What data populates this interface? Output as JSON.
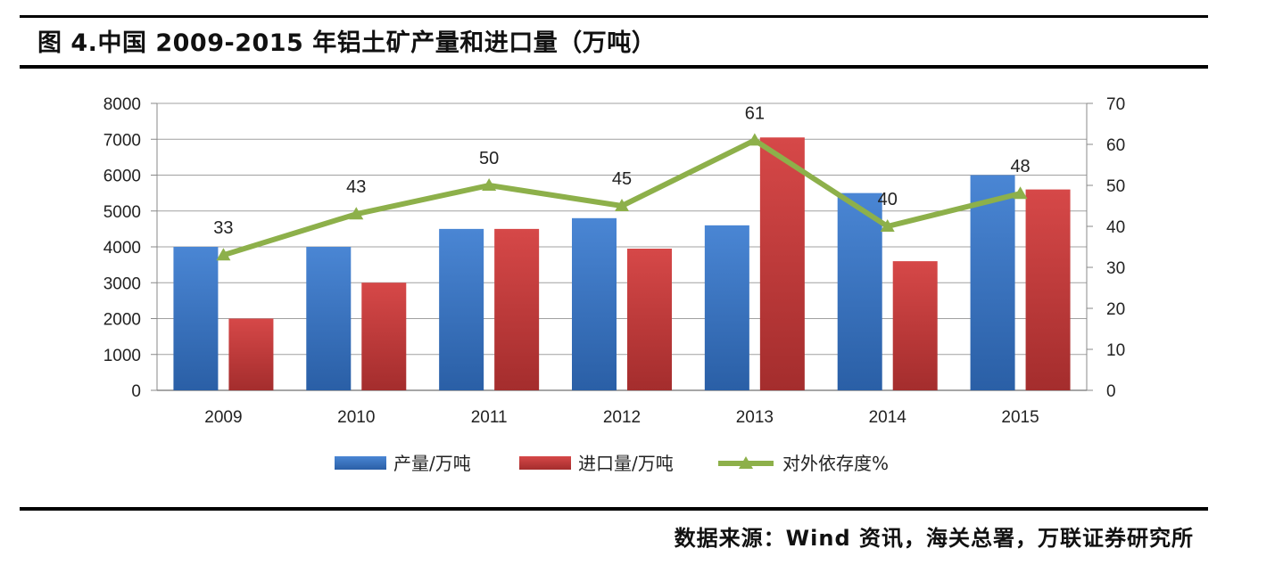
{
  "figure": {
    "title": "图 4.中国 2009-2015 年铝土矿产量和进口量（万吨）",
    "source": "数据来源：Wind 资讯，海关总署，万联证券研究所"
  },
  "colors": {
    "production": "#3a73c2",
    "imports": "#c23a3a",
    "dependence": "#8db04a"
  },
  "chart_data": {
    "type": "bar",
    "title": "",
    "xlabel": "",
    "ylabel": "",
    "categories": [
      "2009",
      "2010",
      "2011",
      "2012",
      "2013",
      "2014",
      "2015"
    ],
    "series": [
      {
        "name": "产量/万吨",
        "type": "bar",
        "axis": "left",
        "values": [
          4000,
          4000,
          4500,
          4800,
          4600,
          5500,
          6000
        ]
      },
      {
        "name": "进口量/万吨",
        "type": "bar",
        "axis": "left",
        "values": [
          2000,
          3000,
          4500,
          3950,
          7050,
          3600,
          5600
        ]
      },
      {
        "name": "对外依存度%",
        "type": "line",
        "axis": "right",
        "marker": "triangle",
        "values": [
          33,
          43,
          50,
          45,
          61,
          40,
          48
        ],
        "data_labels": [
          "33",
          "43",
          "50",
          "45",
          "61",
          "40",
          "48"
        ]
      }
    ],
    "ylim": [
      0,
      8000
    ],
    "y_ticks": [
      "0",
      "1000",
      "2000",
      "3000",
      "4000",
      "5000",
      "6000",
      "7000",
      "8000"
    ],
    "y2lim": [
      0,
      70
    ],
    "y2_ticks": [
      "0",
      "10",
      "20",
      "30",
      "40",
      "50",
      "60",
      "70"
    ],
    "grid": true,
    "legend_position": "bottom"
  }
}
